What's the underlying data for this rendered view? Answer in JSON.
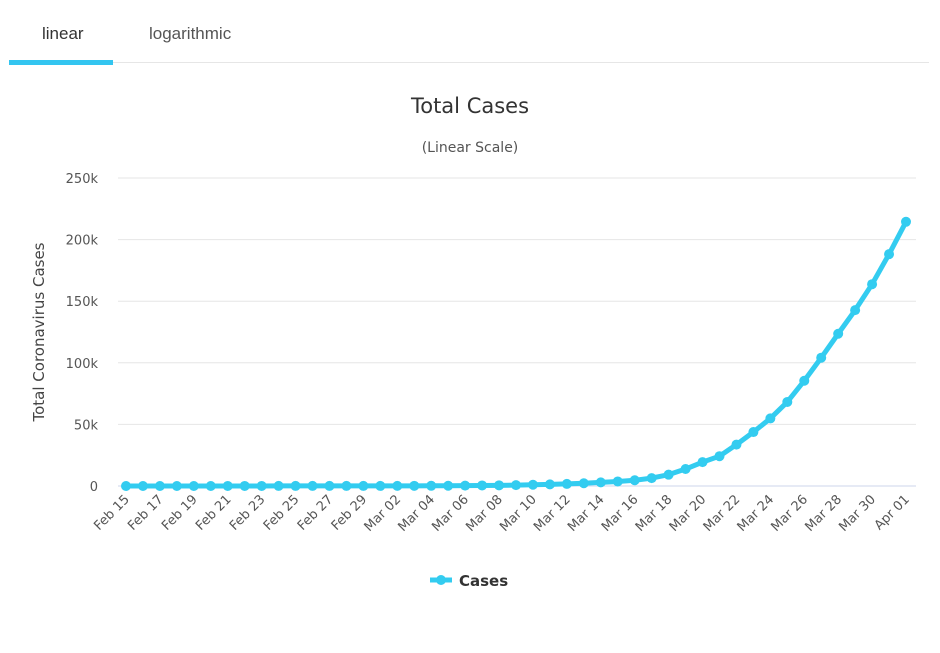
{
  "tabs": [
    {
      "label": "linear",
      "active": true
    },
    {
      "label": "logarithmic",
      "active": false
    }
  ],
  "colors": {
    "accent": "#33c5f0",
    "series": "#33ccf0",
    "grid": "#e6e6e6"
  },
  "chart_data": {
    "type": "line",
    "title": "Total Cases",
    "subtitle": "(Linear Scale)",
    "ylabel": "Total Coronavirus Cases",
    "xlabel": "",
    "ylim": [
      0,
      250000
    ],
    "yticks": [
      0,
      50000,
      100000,
      150000,
      200000,
      250000
    ],
    "ytick_labels": [
      "0",
      "50k",
      "100k",
      "150k",
      "200k",
      "250k"
    ],
    "grid": true,
    "legend": "bottom-center",
    "x": [
      "Feb 15",
      "Feb 16",
      "Feb 17",
      "Feb 18",
      "Feb 19",
      "Feb 20",
      "Feb 21",
      "Feb 22",
      "Feb 23",
      "Feb 24",
      "Feb 25",
      "Feb 26",
      "Feb 27",
      "Feb 28",
      "Feb 29",
      "Mar 01",
      "Mar 02",
      "Mar 03",
      "Mar 04",
      "Mar 05",
      "Mar 06",
      "Mar 07",
      "Mar 08",
      "Mar 09",
      "Mar 10",
      "Mar 11",
      "Mar 12",
      "Mar 13",
      "Mar 14",
      "Mar 15",
      "Mar 16",
      "Mar 17",
      "Mar 18",
      "Mar 19",
      "Mar 20",
      "Mar 21",
      "Mar 22",
      "Mar 23",
      "Mar 24",
      "Mar 25",
      "Mar 26",
      "Mar 27",
      "Mar 28",
      "Mar 29",
      "Mar 30",
      "Mar 31",
      "Apr 01"
    ],
    "xtick_labels": [
      "Feb 15",
      "Feb 17",
      "Feb 19",
      "Feb 21",
      "Feb 23",
      "Feb 25",
      "Feb 27",
      "Feb 29",
      "Mar 02",
      "Mar 04",
      "Mar 06",
      "Mar 08",
      "Mar 10",
      "Mar 12",
      "Mar 14",
      "Mar 16",
      "Mar 18",
      "Mar 20",
      "Mar 22",
      "Mar 24",
      "Mar 26",
      "Mar 28",
      "Mar 30",
      "Apr 01"
    ],
    "series": [
      {
        "name": "Cases",
        "values": [
          15,
          15,
          15,
          15,
          15,
          15,
          35,
          35,
          35,
          53,
          57,
          60,
          60,
          62,
          68,
          75,
          100,
          124,
          158,
          221,
          319,
          435,
          541,
          704,
          994,
          1301,
          1697,
          2247,
          2943,
          3680,
          4663,
          6411,
          9197,
          13779,
          19367,
          24192,
          33592,
          43781,
          54856,
          68211,
          85435,
          104126,
          123578,
          142735,
          163807,
          188172,
          214461
        ]
      }
    ]
  }
}
